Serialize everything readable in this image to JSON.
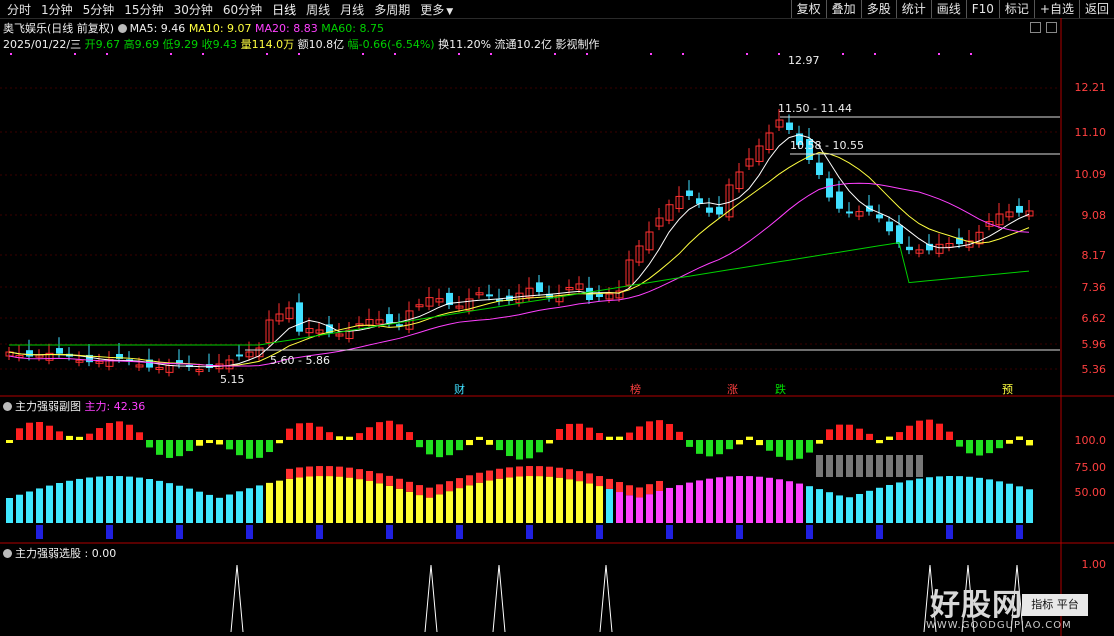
{
  "toolbar": {
    "left_items": [
      "分时",
      "1分钟",
      "5分钟",
      "15分钟",
      "30分钟",
      "60分钟",
      "日线",
      "周线",
      "月线",
      "多周期",
      "更多"
    ],
    "right_items": [
      "复权",
      "叠加",
      "多股",
      "统计",
      "画线",
      "F10",
      "标记",
      "+自选",
      "返回"
    ]
  },
  "header": {
    "stock_name": "奥飞娱乐(日线 前复权)",
    "ma5": "MA5: 9.46",
    "ma10": "MA10: 9.07",
    "ma20": "MA20: 8.83",
    "ma60": "MA60: 8.75",
    "date": "2025/01/22/三",
    "open": "开9.67",
    "high": "高9.69",
    "low": "低9.29",
    "close": "收9.43",
    "volume": "量114.0万",
    "amount": "额10.8亿",
    "change": "幅-0.66(-6.54%)",
    "turnover": "换11.20%",
    "float_cap": "流通10.2亿",
    "extra": "影视制作"
  },
  "price_axis": [
    "12.21",
    "11.10",
    "10.09",
    "9.08",
    "8.17",
    "7.36",
    "6.62",
    "5.96",
    "5.36"
  ],
  "annotations": {
    "high_label": "12.97",
    "level1": "11.50 - 11.44",
    "level2": "10.58 - 10.55",
    "level3": "5.60 - 5.86",
    "low_label": "5.15"
  },
  "event_markers": [
    "财",
    "榜",
    "涨",
    "跌",
    "预"
  ],
  "panel2": {
    "title": "主力强弱副图",
    "value": "主力: 42.36",
    "axis": [
      "100.0",
      "75.00",
      "50.00"
    ]
  },
  "panel3": {
    "title": "主力强弱选股 : 0.00",
    "axis": [
      "1.00"
    ]
  },
  "watermark": {
    "big": "好股网",
    "small": "WWW.GOODGUPIAO.COM",
    "button": "指标 平台"
  },
  "colors": {
    "up": "#ff3030",
    "down": "#40e0ff",
    "ma5": "#ffffff",
    "ma10": "#ffff40",
    "ma20": "#ff40ff",
    "ma60": "#00d000"
  }
}
